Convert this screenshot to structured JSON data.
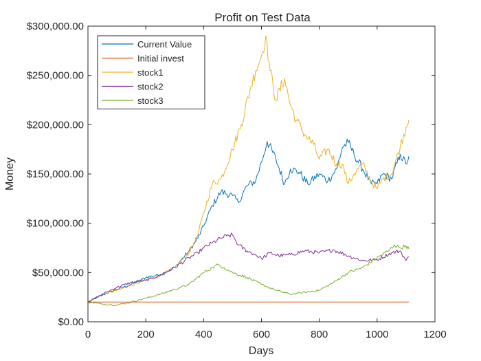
{
  "chart_data": {
    "type": "line",
    "title": "Profit on Test Data",
    "xlabel": "Days",
    "ylabel": "Money",
    "xlim": [
      0,
      1200
    ],
    "ylim": [
      0,
      300000
    ],
    "xticks": [
      0,
      200,
      400,
      600,
      800,
      1000,
      1200
    ],
    "xtick_labels": [
      "0",
      "200",
      "400",
      "600",
      "800",
      "1000",
      "1200"
    ],
    "yticks": [
      0,
      50000,
      100000,
      150000,
      200000,
      250000,
      300000
    ],
    "ytick_labels": [
      "$0.00",
      "$50,000.00",
      "$100,000.00",
      "$150,000.00",
      "$200,000.00",
      "$250,000.00",
      "$300,000.00"
    ],
    "grid": false,
    "legend_position": "top-left",
    "series": [
      {
        "name": "Current Value",
        "color": "#0072BD",
        "x": [
          0,
          50,
          100,
          150,
          200,
          250,
          300,
          350,
          380,
          400,
          430,
          460,
          500,
          520,
          550,
          580,
          600,
          620,
          650,
          680,
          700,
          730,
          760,
          800,
          830,
          860,
          880,
          900,
          920,
          950,
          980,
          1000,
          1020,
          1050,
          1080,
          1100,
          1110
        ],
        "y": [
          20000,
          27000,
          33000,
          38000,
          45000,
          48000,
          55000,
          72000,
          85000,
          97000,
          118000,
          132000,
          128000,
          121000,
          138000,
          143000,
          162000,
          183000,
          165000,
          140000,
          155000,
          152000,
          140000,
          150000,
          143000,
          155000,
          177000,
          182000,
          170000,
          155000,
          140000,
          140000,
          150000,
          145000,
          170000,
          160000,
          168000
        ]
      },
      {
        "name": "Initial invest",
        "color": "#D95319",
        "x": [
          0,
          1110
        ],
        "y": [
          20000,
          20000
        ]
      },
      {
        "name": "stock1",
        "color": "#EDB120",
        "x": [
          0,
          50,
          100,
          150,
          200,
          250,
          300,
          350,
          380,
          400,
          430,
          460,
          500,
          530,
          560,
          580,
          600,
          615,
          630,
          650,
          680,
          700,
          720,
          750,
          780,
          800,
          830,
          860,
          880,
          900,
          920,
          950,
          980,
          1000,
          1020,
          1050,
          1080,
          1100,
          1110
        ],
        "y": [
          20000,
          28000,
          32000,
          37000,
          42000,
          47000,
          55000,
          70000,
          88000,
          110000,
          140000,
          145000,
          175000,
          200000,
          235000,
          255000,
          270000,
          290000,
          255000,
          225000,
          247000,
          220000,
          205000,
          190000,
          180000,
          165000,
          175000,
          160000,
          160000,
          140000,
          150000,
          160000,
          142000,
          135000,
          145000,
          150000,
          178000,
          197000,
          205000
        ]
      },
      {
        "name": "stock2",
        "color": "#7E2F8E",
        "x": [
          0,
          50,
          100,
          150,
          200,
          250,
          300,
          350,
          380,
          400,
          430,
          460,
          480,
          500,
          520,
          550,
          580,
          600,
          630,
          660,
          700,
          750,
          800,
          850,
          900,
          950,
          1000,
          1050,
          1080,
          1100,
          1110
        ],
        "y": [
          20000,
          28000,
          35000,
          40000,
          42000,
          47000,
          55000,
          65000,
          70000,
          75000,
          80000,
          85000,
          87000,
          88000,
          78000,
          72000,
          68000,
          64000,
          70000,
          67000,
          68000,
          72000,
          70000,
          73000,
          67000,
          62000,
          63000,
          70000,
          72000,
          62000,
          66000
        ]
      },
      {
        "name": "stock3",
        "color": "#77AC30",
        "x": [
          0,
          50,
          100,
          150,
          200,
          250,
          300,
          350,
          400,
          430,
          450,
          470,
          500,
          550,
          600,
          650,
          700,
          750,
          800,
          850,
          900,
          950,
          1000,
          1040,
          1060,
          1080,
          1100,
          1110
        ],
        "y": [
          20000,
          18000,
          17000,
          20000,
          24000,
          28000,
          33000,
          38000,
          50000,
          55000,
          58000,
          55000,
          50000,
          45000,
          38000,
          32000,
          28000,
          30000,
          32000,
          40000,
          50000,
          55000,
          65000,
          72000,
          78000,
          75000,
          77000,
          74000
        ]
      }
    ]
  }
}
